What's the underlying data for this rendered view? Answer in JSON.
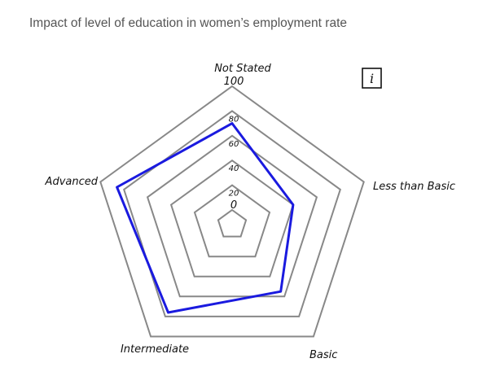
{
  "chart_data": {
    "type": "radar",
    "title": "Impact of level of education in women’s employment rate",
    "axes": [
      "Not Stated",
      "Less than Basic",
      "Basic",
      "Intermediate",
      "Advanced"
    ],
    "tick_labels": [
      "0",
      "20",
      "40",
      "60",
      "80",
      "100"
    ],
    "range": [
      0,
      100
    ],
    "series": [
      {
        "values": [
          70,
          40,
          55,
          76,
          86
        ],
        "color": "#1a1adf"
      }
    ],
    "grid_color": "#888888",
    "info_icon": "i"
  }
}
